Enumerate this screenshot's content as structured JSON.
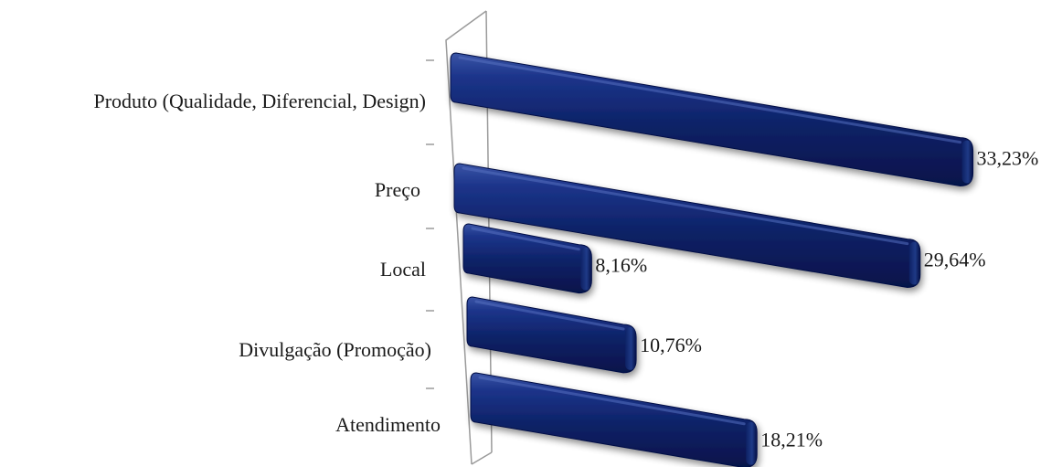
{
  "chart_data": {
    "type": "bar",
    "orientation": "horizontal",
    "style": "3d-perspective",
    "categories": [
      "Produto (Qualidade, Diferencial, Design)",
      "Preço",
      "Local",
      "Divulgação (Promoção)",
      "Atendimento"
    ],
    "values": [
      33.23,
      29.64,
      8.16,
      10.76,
      18.21
    ],
    "value_labels": [
      "33,23%",
      "29,64%",
      "8,16%",
      "10,76%",
      "18,21%"
    ],
    "unit": "%",
    "title": "",
    "xlabel": "",
    "ylabel": "",
    "xlim": [
      0,
      35
    ],
    "grid": false,
    "legend": "none",
    "colors": {
      "bar": "#0d2266",
      "bar_highlight": "#3a55a6",
      "bar_shadow": "#030a2a",
      "axis": "#9a9a9a"
    }
  }
}
